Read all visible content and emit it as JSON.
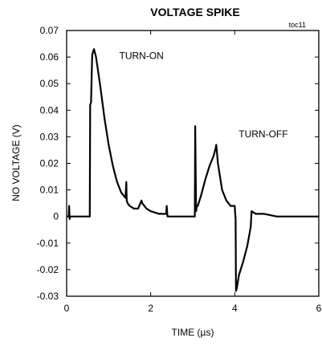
{
  "chart_data": {
    "type": "line",
    "title": "VOLTAGE SPIKE",
    "tag": "toc11",
    "xlabel": "TIME (µs)",
    "ylabel": "NO VOLTAGE (V)",
    "xlim": [
      0,
      6
    ],
    "ylim": [
      -0.03,
      0.07
    ],
    "xticks": [
      "0",
      "2",
      "4",
      "6"
    ],
    "xtick_values": [
      0,
      2,
      4,
      6
    ],
    "yticks": [
      "0.07",
      "0.06",
      "0.05",
      "0.04",
      "0.03",
      "0.02",
      "0.01",
      "0",
      "-0.01",
      "-0.02",
      "-0.03"
    ],
    "ytick_values": [
      0.07,
      0.06,
      0.05,
      0.04,
      0.03,
      0.02,
      0.01,
      0,
      -0.01,
      -0.02,
      -0.03
    ],
    "grid": false,
    "annotations": [
      {
        "text": "TURN-ON",
        "x": 1.78,
        "y": 0.0605
      },
      {
        "text": "TURN-OFF",
        "x": 4.68,
        "y": 0.031
      }
    ],
    "series": [
      {
        "color": "#000000",
        "x": [
          0,
          0.05,
          0.06,
          0.07,
          0.08,
          0.3,
          0.55,
          0.56,
          0.58,
          0.6,
          0.61,
          0.65,
          0.7,
          0.8,
          0.9,
          1.0,
          1.1,
          1.2,
          1.3,
          1.4,
          1.42,
          1.43,
          1.45,
          1.5,
          1.6,
          1.7,
          1.78,
          1.8,
          1.9,
          2.0,
          2.2,
          2.37,
          2.38,
          2.4,
          2.5,
          2.8,
          3.05,
          3.06,
          3.08,
          3.1,
          3.12,
          3.2,
          3.3,
          3.4,
          3.5,
          3.55,
          3.56,
          3.6,
          3.7,
          3.8,
          3.9,
          4.0,
          4.02,
          4.03,
          4.05,
          4.1,
          4.2,
          4.3,
          4.38,
          4.4,
          4.5,
          4.7,
          5.0,
          5.5,
          6.0
        ],
        "y": [
          0,
          0,
          0.004,
          -0.001,
          0,
          0,
          0,
          0.042,
          0.043,
          0.056,
          0.061,
          0.063,
          0.06,
          0.049,
          0.037,
          0.027,
          0.019,
          0.013,
          0.009,
          0.007,
          0.013,
          0.006,
          0.005,
          0.004,
          0.003,
          0.003,
          0.006,
          0.005,
          0.003,
          0.002,
          0.001,
          0.001,
          0.004,
          0,
          0,
          0,
          0,
          0.034,
          0.002,
          0.004,
          0.004,
          0.008,
          0.014,
          0.019,
          0.023,
          0.026,
          0.027,
          0.02,
          0.01,
          0.006,
          0.004,
          0.004,
          -0.001,
          -0.028,
          -0.027,
          -0.022,
          -0.017,
          -0.011,
          -0.004,
          0.002,
          0.001,
          0.001,
          0,
          0,
          0
        ]
      }
    ]
  }
}
